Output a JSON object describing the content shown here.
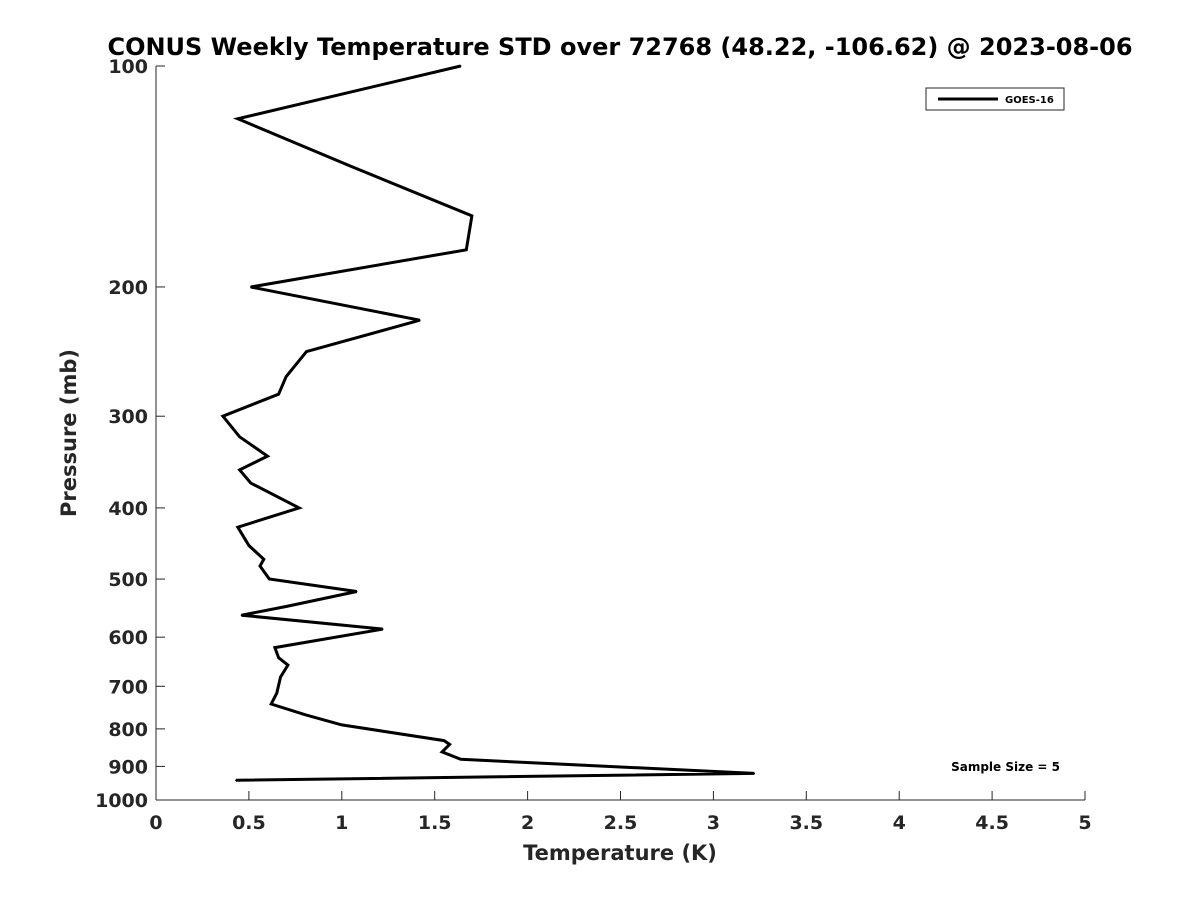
{
  "chart_data": {
    "type": "line",
    "title": "CONUS Weekly Temperature STD over 72768 (48.22, -106.62) @ 2023-08-06",
    "xlabel": "Temperature (K)",
    "ylabel": "Pressure (mb)",
    "xlim": [
      0,
      5
    ],
    "ylim": [
      100,
      1000
    ],
    "y_scale": "log",
    "y_reversed": true,
    "x_ticks": [
      {
        "value": 0,
        "label": "0"
      },
      {
        "value": 0.5,
        "label": "0.5"
      },
      {
        "value": 1,
        "label": "1"
      },
      {
        "value": 1.5,
        "label": "1.5"
      },
      {
        "value": 2,
        "label": "2"
      },
      {
        "value": 2.5,
        "label": "2.5"
      },
      {
        "value": 3,
        "label": "3"
      },
      {
        "value": 3.5,
        "label": "3.5"
      },
      {
        "value": 4,
        "label": "4"
      },
      {
        "value": 4.5,
        "label": "4.5"
      },
      {
        "value": 5,
        "label": "5"
      }
    ],
    "y_ticks": [
      {
        "value": 100,
        "label": "100"
      },
      {
        "value": 200,
        "label": "200"
      },
      {
        "value": 300,
        "label": "300"
      },
      {
        "value": 400,
        "label": "400"
      },
      {
        "value": 500,
        "label": "500"
      },
      {
        "value": 600,
        "label": "600"
      },
      {
        "value": 700,
        "label": "700"
      },
      {
        "value": 800,
        "label": "800"
      },
      {
        "value": 900,
        "label": "900"
      },
      {
        "value": 1000,
        "label": "1000"
      }
    ],
    "grid": false,
    "legend_position": "top-right",
    "series": [
      {
        "name": "GOES-16",
        "color": "#000000",
        "points": [
          {
            "x": 1.64,
            "y": 100
          },
          {
            "x": 0.44,
            "y": 118
          },
          {
            "x": 1.05,
            "y": 137
          },
          {
            "x": 1.7,
            "y": 160
          },
          {
            "x": 1.67,
            "y": 178
          },
          {
            "x": 0.51,
            "y": 200
          },
          {
            "x": 1.42,
            "y": 222
          },
          {
            "x": 0.81,
            "y": 245
          },
          {
            "x": 0.7,
            "y": 265
          },
          {
            "x": 0.66,
            "y": 280
          },
          {
            "x": 0.36,
            "y": 300
          },
          {
            "x": 0.45,
            "y": 320
          },
          {
            "x": 0.6,
            "y": 340
          },
          {
            "x": 0.45,
            "y": 355
          },
          {
            "x": 0.51,
            "y": 370
          },
          {
            "x": 0.77,
            "y": 400
          },
          {
            "x": 0.44,
            "y": 425
          },
          {
            "x": 0.5,
            "y": 450
          },
          {
            "x": 0.58,
            "y": 470
          },
          {
            "x": 0.56,
            "y": 480
          },
          {
            "x": 0.61,
            "y": 500
          },
          {
            "x": 1.08,
            "y": 520
          },
          {
            "x": 0.7,
            "y": 545
          },
          {
            "x": 0.46,
            "y": 560
          },
          {
            "x": 1.22,
            "y": 585
          },
          {
            "x": 0.64,
            "y": 620
          },
          {
            "x": 0.66,
            "y": 640
          },
          {
            "x": 0.71,
            "y": 655
          },
          {
            "x": 0.67,
            "y": 680
          },
          {
            "x": 0.65,
            "y": 715
          },
          {
            "x": 0.62,
            "y": 740
          },
          {
            "x": 0.8,
            "y": 765
          },
          {
            "x": 1.0,
            "y": 790
          },
          {
            "x": 1.55,
            "y": 830
          },
          {
            "x": 1.58,
            "y": 840
          },
          {
            "x": 1.54,
            "y": 860
          },
          {
            "x": 1.64,
            "y": 880
          },
          {
            "x": 3.22,
            "y": 920
          },
          {
            "x": 0.43,
            "y": 940
          }
        ]
      }
    ],
    "annotation": "Sample Size = 5"
  }
}
